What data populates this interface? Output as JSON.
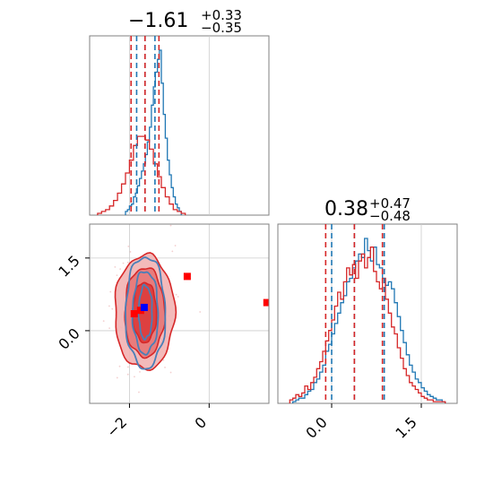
{
  "chart_data": [
    {
      "type": "histogram",
      "panel": "corner-diagonal-1",
      "title": {
        "value": "−1.61",
        "plus": "+0.33",
        "minus": "−0.35"
      },
      "xlim": [
        -3.0,
        1.5
      ],
      "grid": true,
      "series": [
        {
          "color": "#1f77b4",
          "bin_width": 0.05,
          "bins_start": -2.1,
          "counts": [
            0.02,
            0.03,
            0.05,
            0.06,
            0.1,
            0.12,
            0.16,
            0.2,
            0.24,
            0.28,
            0.33,
            0.4,
            0.48,
            0.6,
            0.7,
            0.78,
            0.85,
            0.9,
            0.72,
            0.55,
            0.42,
            0.3,
            0.22,
            0.15,
            0.1,
            0.06,
            0.04,
            0.02
          ]
        },
        {
          "color": "#d62728",
          "bin_width": 0.1,
          "bins_start": -2.8,
          "counts": [
            0.01,
            0.02,
            0.03,
            0.05,
            0.08,
            0.12,
            0.17,
            0.23,
            0.3,
            0.38,
            0.43,
            0.43,
            0.41,
            0.36,
            0.28,
            0.21,
            0.15,
            0.1,
            0.06,
            0.03,
            0.02,
            0.01
          ]
        }
      ],
      "vlines": [
        {
          "x": -1.96,
          "color": "#d62728"
        },
        {
          "x": -1.26,
          "color": "#d62728"
        },
        {
          "x": -1.82,
          "color": "#1f77b4"
        },
        {
          "x": -1.36,
          "color": "#1f77b4"
        },
        {
          "x": -1.61,
          "color": "#1f77b4"
        },
        {
          "x": -1.61,
          "color": "#d62728"
        }
      ]
    },
    {
      "type": "histogram",
      "panel": "corner-diagonal-2",
      "title": {
        "value": "0.38",
        "plus": "+0.47",
        "minus": "−0.48"
      },
      "xlim": [
        -0.9,
        2.1
      ],
      "grid": true,
      "x_ticks": [
        0.0,
        1.5
      ],
      "x_tick_labels": [
        "0.0",
        "1.5"
      ],
      "series": [
        {
          "color": "#1f77b4",
          "bin_width": 0.05,
          "bins_start": -0.65,
          "counts": [
            0.01,
            0.02,
            0.03,
            0.03,
            0.05,
            0.07,
            0.08,
            0.12,
            0.14,
            0.18,
            0.22,
            0.3,
            0.34,
            0.4,
            0.46,
            0.52,
            0.58,
            0.62,
            0.7,
            0.72,
            0.78,
            0.82,
            0.86,
            0.84,
            0.95,
            0.88,
            0.82,
            0.9,
            0.8,
            0.78,
            0.72,
            0.68,
            0.7,
            0.66,
            0.58,
            0.5,
            0.42,
            0.35,
            0.28,
            0.22,
            0.18,
            0.14,
            0.12,
            0.09,
            0.07,
            0.05,
            0.04,
            0.03,
            0.02,
            0.02,
            0.01
          ]
        },
        {
          "color": "#d62728",
          "bin_width": 0.05,
          "bins_start": -0.7,
          "counts": [
            0.02,
            0.03,
            0.05,
            0.04,
            0.06,
            0.1,
            0.08,
            0.12,
            0.15,
            0.2,
            0.24,
            0.3,
            0.36,
            0.42,
            0.48,
            0.56,
            0.64,
            0.6,
            0.7,
            0.78,
            0.74,
            0.8,
            0.72,
            0.82,
            0.86,
            0.78,
            0.84,
            0.9,
            0.76,
            0.7,
            0.66,
            0.72,
            0.6,
            0.52,
            0.44,
            0.4,
            0.32,
            0.26,
            0.2,
            0.16,
            0.12,
            0.1,
            0.08,
            0.06,
            0.04,
            0.03,
            0.02,
            0.02,
            0.01,
            0.01,
            0.01,
            0.01
          ]
        }
      ],
      "vlines": [
        {
          "x": -0.1,
          "color": "#d62728"
        },
        {
          "x": 0.85,
          "color": "#d62728"
        },
        {
          "x": 0.0,
          "color": "#1f77b4"
        },
        {
          "x": 0.88,
          "color": "#1f77b4"
        },
        {
          "x": 0.38,
          "color": "#1f77b4"
        },
        {
          "x": 0.38,
          "color": "#d62728"
        }
      ]
    },
    {
      "type": "contour",
      "panel": "corner-offdiagonal",
      "xlim": [
        -3.0,
        1.5
      ],
      "ylim": [
        -1.5,
        2.2
      ],
      "grid": true,
      "x_ticks": [
        -2,
        0
      ],
      "x_tick_labels": [
        "−2",
        "0"
      ],
      "y_ticks": [
        0.0,
        1.5
      ],
      "y_tick_labels": [
        "0.0",
        "1.5"
      ],
      "red_contours": [
        {
          "level": "outer",
          "center": [
            -1.62,
            0.38
          ],
          "rx": 0.75,
          "ry": 1.18
        },
        {
          "level": "middle",
          "center": [
            -1.62,
            0.38
          ],
          "rx": 0.5,
          "ry": 0.92
        },
        {
          "level": "inner",
          "center": [
            -1.62,
            0.38
          ],
          "rx": 0.3,
          "ry": 0.62
        }
      ],
      "blue_contours": [
        {
          "level": "outer",
          "center": [
            -1.6,
            0.38
          ],
          "rx": 0.5,
          "ry": 1.15
        },
        {
          "level": "middle",
          "center": [
            -1.6,
            0.38
          ],
          "rx": 0.32,
          "ry": 0.85
        },
        {
          "level": "inner",
          "center": [
            -1.6,
            0.38
          ],
          "rx": 0.17,
          "ry": 0.55
        }
      ],
      "red_markers": [
        [
          -1.88,
          0.35
        ],
        [
          -0.55,
          1.12
        ],
        [
          1.45,
          0.58
        ],
        [
          -1.72,
          0.42
        ]
      ],
      "blue_markers": [
        [
          -1.63,
          0.48
        ]
      ]
    }
  ]
}
